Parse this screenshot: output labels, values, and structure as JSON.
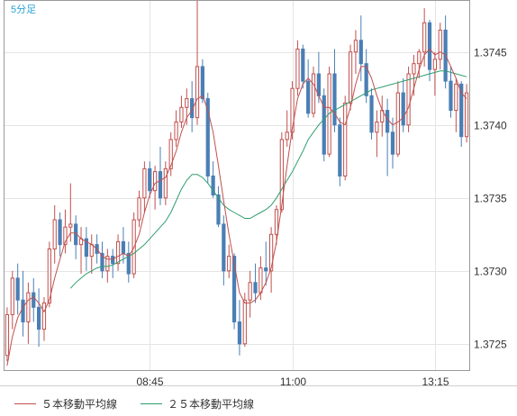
{
  "chart_data": {
    "type": "candlestick",
    "period_label": "5分足",
    "x_tick_labels": [
      "08:45",
      "11:00",
      "13:15"
    ],
    "y_ticks": [
      1.3725,
      1.373,
      1.3735,
      1.374,
      1.3745
    ],
    "y_tick_labels": [
      "1.3725",
      "1.3730",
      "1.3735",
      "1.3740",
      "1.3745"
    ],
    "ylim": [
      1.37232,
      1.37485
    ],
    "grid": true,
    "legend_position": "bottom-left",
    "colors": {
      "up": "#c0504d",
      "down": "#4a7fb5",
      "ma5": "#c0504d",
      "ma25": "#2e9e6e"
    },
    "series": [
      {
        "name": "５本移動平均線",
        "kind": "ma5"
      },
      {
        "name": "２５本移動平均線",
        "kind": "ma25"
      }
    ],
    "candles": [
      [
        1.37242,
        1.37275,
        1.37238,
        1.3727
      ],
      [
        1.3727,
        1.373,
        1.3726,
        1.37295
      ],
      [
        1.37295,
        1.37305,
        1.3727,
        1.3728
      ],
      [
        1.3728,
        1.373,
        1.37255,
        1.37265
      ],
      [
        1.37265,
        1.37292,
        1.3725,
        1.37285
      ],
      [
        1.37285,
        1.37295,
        1.37265,
        1.37275
      ],
      [
        1.37275,
        1.37288,
        1.37248,
        1.3726
      ],
      [
        1.3726,
        1.37282,
        1.37252,
        1.37278
      ],
      [
        1.37278,
        1.3732,
        1.37275,
        1.37315
      ],
      [
        1.37315,
        1.37345,
        1.37305,
        1.37335
      ],
      [
        1.37335,
        1.3734,
        1.3731,
        1.37318
      ],
      [
        1.37318,
        1.37342,
        1.37312,
        1.3733
      ],
      [
        1.3733,
        1.3736,
        1.3732,
        1.37332
      ],
      [
        1.37332,
        1.37338,
        1.37308,
        1.37318
      ],
      [
        1.37318,
        1.3733,
        1.37298,
        1.37322
      ],
      [
        1.37322,
        1.3733,
        1.373,
        1.3731
      ],
      [
        1.3731,
        1.37325,
        1.37298,
        1.37318
      ],
      [
        1.37318,
        1.37325,
        1.37305,
        1.37312
      ],
      [
        1.37312,
        1.3732,
        1.37295,
        1.373
      ],
      [
        1.373,
        1.37315,
        1.37292,
        1.3731
      ],
      [
        1.3731,
        1.37315,
        1.37295,
        1.37305
      ],
      [
        1.37305,
        1.37325,
        1.373,
        1.3732
      ],
      [
        1.3732,
        1.3733,
        1.37305,
        1.37312
      ],
      [
        1.37312,
        1.3732,
        1.37292,
        1.37298
      ],
      [
        1.37298,
        1.3734,
        1.37295,
        1.37335
      ],
      [
        1.37335,
        1.37355,
        1.3733,
        1.3735
      ],
      [
        1.3735,
        1.37375,
        1.3734,
        1.3737
      ],
      [
        1.3737,
        1.37375,
        1.3735,
        1.37355
      ],
      [
        1.37355,
        1.37372,
        1.37342,
        1.37368
      ],
      [
        1.37368,
        1.37385,
        1.37345,
        1.3735
      ],
      [
        1.3735,
        1.37375,
        1.37345,
        1.3737
      ],
      [
        1.3737,
        1.37395,
        1.37365,
        1.3739
      ],
      [
        1.3739,
        1.3741,
        1.37385,
        1.37402
      ],
      [
        1.37402,
        1.3742,
        1.37398,
        1.37412
      ],
      [
        1.37412,
        1.37425,
        1.374,
        1.37418
      ],
      [
        1.37418,
        1.3743,
        1.37395,
        1.37405
      ],
      [
        1.37405,
        1.37485,
        1.374,
        1.3744
      ],
      [
        1.3744,
        1.37445,
        1.37415,
        1.37418
      ],
      [
        1.37418,
        1.37422,
        1.3736,
        1.37365
      ],
      [
        1.37365,
        1.37375,
        1.3735,
        1.37352
      ],
      [
        1.37352,
        1.37358,
        1.3733,
        1.37332
      ],
      [
        1.37332,
        1.37338,
        1.3729,
        1.373
      ],
      [
        1.373,
        1.37318,
        1.37295,
        1.3731
      ],
      [
        1.3731,
        1.37312,
        1.3726,
        1.37265
      ],
      [
        1.37265,
        1.3728,
        1.37242,
        1.3725
      ],
      [
        1.3725,
        1.37285,
        1.37248,
        1.3728
      ],
      [
        1.3728,
        1.373,
        1.37268,
        1.37292
      ],
      [
        1.37292,
        1.37305,
        1.37278,
        1.37285
      ],
      [
        1.37285,
        1.3731,
        1.3728,
        1.37302
      ],
      [
        1.37302,
        1.3732,
        1.3729,
        1.373
      ],
      [
        1.373,
        1.3733,
        1.37285,
        1.37325
      ],
      [
        1.37325,
        1.37345,
        1.37318,
        1.37342
      ],
      [
        1.37342,
        1.37395,
        1.3734,
        1.3739
      ],
      [
        1.3739,
        1.3741,
        1.37385,
        1.37395
      ],
      [
        1.37395,
        1.3743,
        1.3739,
        1.37425
      ],
      [
        1.37425,
        1.37458,
        1.3742,
        1.37452
      ],
      [
        1.37452,
        1.37455,
        1.37425,
        1.3743
      ],
      [
        1.3743,
        1.37445,
        1.37405,
        1.37408
      ],
      [
        1.37408,
        1.3744,
        1.37405,
        1.37435
      ],
      [
        1.37435,
        1.3745,
        1.37415,
        1.3742
      ],
      [
        1.3742,
        1.37425,
        1.37375,
        1.3738
      ],
      [
        1.3738,
        1.3744,
        1.37378,
        1.37435
      ],
      [
        1.37435,
        1.37452,
        1.37395,
        1.374
      ],
      [
        1.374,
        1.37405,
        1.37358,
        1.37365
      ],
      [
        1.37365,
        1.3742,
        1.37362,
        1.37415
      ],
      [
        1.37415,
        1.37455,
        1.3741,
        1.3745
      ],
      [
        1.3745,
        1.37465,
        1.37435,
        1.37458
      ],
      [
        1.37458,
        1.37475,
        1.3743,
        1.37442
      ],
      [
        1.37442,
        1.37452,
        1.37415,
        1.3742
      ],
      [
        1.3742,
        1.37425,
        1.3739,
        1.37395
      ],
      [
        1.37395,
        1.3741,
        1.37378,
        1.37402
      ],
      [
        1.37402,
        1.3742,
        1.37392,
        1.3741
      ],
      [
        1.3741,
        1.37418,
        1.37365,
        1.37395
      ],
      [
        1.37395,
        1.37405,
        1.3737,
        1.3738
      ],
      [
        1.3738,
        1.3743,
        1.37378,
        1.37422
      ],
      [
        1.37422,
        1.37432,
        1.37395,
        1.374
      ],
      [
        1.374,
        1.3744,
        1.37395,
        1.37435
      ],
      [
        1.37435,
        1.37448,
        1.3742,
        1.37442
      ],
      [
        1.37442,
        1.37452,
        1.37432,
        1.3745
      ],
      [
        1.3745,
        1.3748,
        1.3744,
        1.3747
      ],
      [
        1.3747,
        1.37472,
        1.3743,
        1.37438
      ],
      [
        1.37438,
        1.3745,
        1.3742,
        1.37445
      ],
      [
        1.37445,
        1.3747,
        1.37438,
        1.37465
      ],
      [
        1.37465,
        1.37475,
        1.37425,
        1.3743
      ],
      [
        1.3743,
        1.3744,
        1.37405,
        1.3741
      ],
      [
        1.3741,
        1.37432,
        1.37395,
        1.37428
      ],
      [
        1.37428,
        1.3743,
        1.37385,
        1.37392
      ],
      [
        1.37392,
        1.37428,
        1.37388,
        1.37422
      ]
    ],
    "ma5": [
      1.37235,
      1.37255,
      1.37268,
      1.37275,
      1.3728,
      1.37282,
      1.37278,
      1.37272,
      1.3728,
      1.37295,
      1.37308,
      1.3732,
      1.37326,
      1.37326,
      1.37322,
      1.3732,
      1.37318,
      1.37315,
      1.3731,
      1.37308,
      1.37308,
      1.3731,
      1.37312,
      1.3731,
      1.37316,
      1.37325,
      1.3734,
      1.37352,
      1.3736,
      1.37362,
      1.37364,
      1.37372,
      1.37382,
      1.37395,
      1.37405,
      1.3741,
      1.37418,
      1.3742,
      1.3741,
      1.37395,
      1.37372,
      1.37348,
      1.37325,
      1.37305,
      1.37285,
      1.37278,
      1.37278,
      1.3728,
      1.37285,
      1.37292,
      1.37302,
      1.3732,
      1.37345,
      1.37372,
      1.37398,
      1.37418,
      1.37428,
      1.37432,
      1.37428,
      1.3742,
      1.37412,
      1.37412,
      1.37408,
      1.37402,
      1.374,
      1.37412,
      1.37428,
      1.3744,
      1.3744,
      1.37432,
      1.3742,
      1.3741,
      1.37404,
      1.374,
      1.37402,
      1.37405,
      1.37412,
      1.37425,
      1.37438,
      1.37448,
      1.37452,
      1.37448,
      1.3745,
      1.37448,
      1.3744,
      1.37432,
      1.37422,
      1.37418
    ],
    "ma25": [
      null,
      null,
      null,
      null,
      null,
      null,
      null,
      null,
      null,
      null,
      null,
      null,
      1.37288,
      1.37292,
      1.37295,
      1.37298,
      1.373,
      1.37302,
      1.37303,
      1.37303,
      1.37304,
      1.37306,
      1.37308,
      1.3731,
      1.37312,
      1.37315,
      1.37318,
      1.37322,
      1.37326,
      1.3733,
      1.37334,
      1.3734,
      1.37348,
      1.37356,
      1.37362,
      1.37366,
      1.37366,
      1.37364,
      1.3736,
      1.37355,
      1.3735,
      1.37345,
      1.37342,
      1.3734,
      1.37338,
      1.37336,
      1.37336,
      1.37338,
      1.3734,
      1.37342,
      1.37345,
      1.3735,
      1.37356,
      1.37362,
      1.37368,
      1.37375,
      1.37382,
      1.3739,
      1.37395,
      1.374,
      1.37404,
      1.37408,
      1.3741,
      1.37412,
      1.37414,
      1.37416,
      1.37418,
      1.3742,
      1.37422,
      1.37424,
      1.37425,
      1.37426,
      1.37427,
      1.37428,
      1.37429,
      1.3743,
      1.37431,
      1.37432,
      1.37433,
      1.37434,
      1.37435,
      1.37436,
      1.37437,
      1.37437,
      1.37436,
      1.37435,
      1.37434,
      1.37433
    ]
  }
}
